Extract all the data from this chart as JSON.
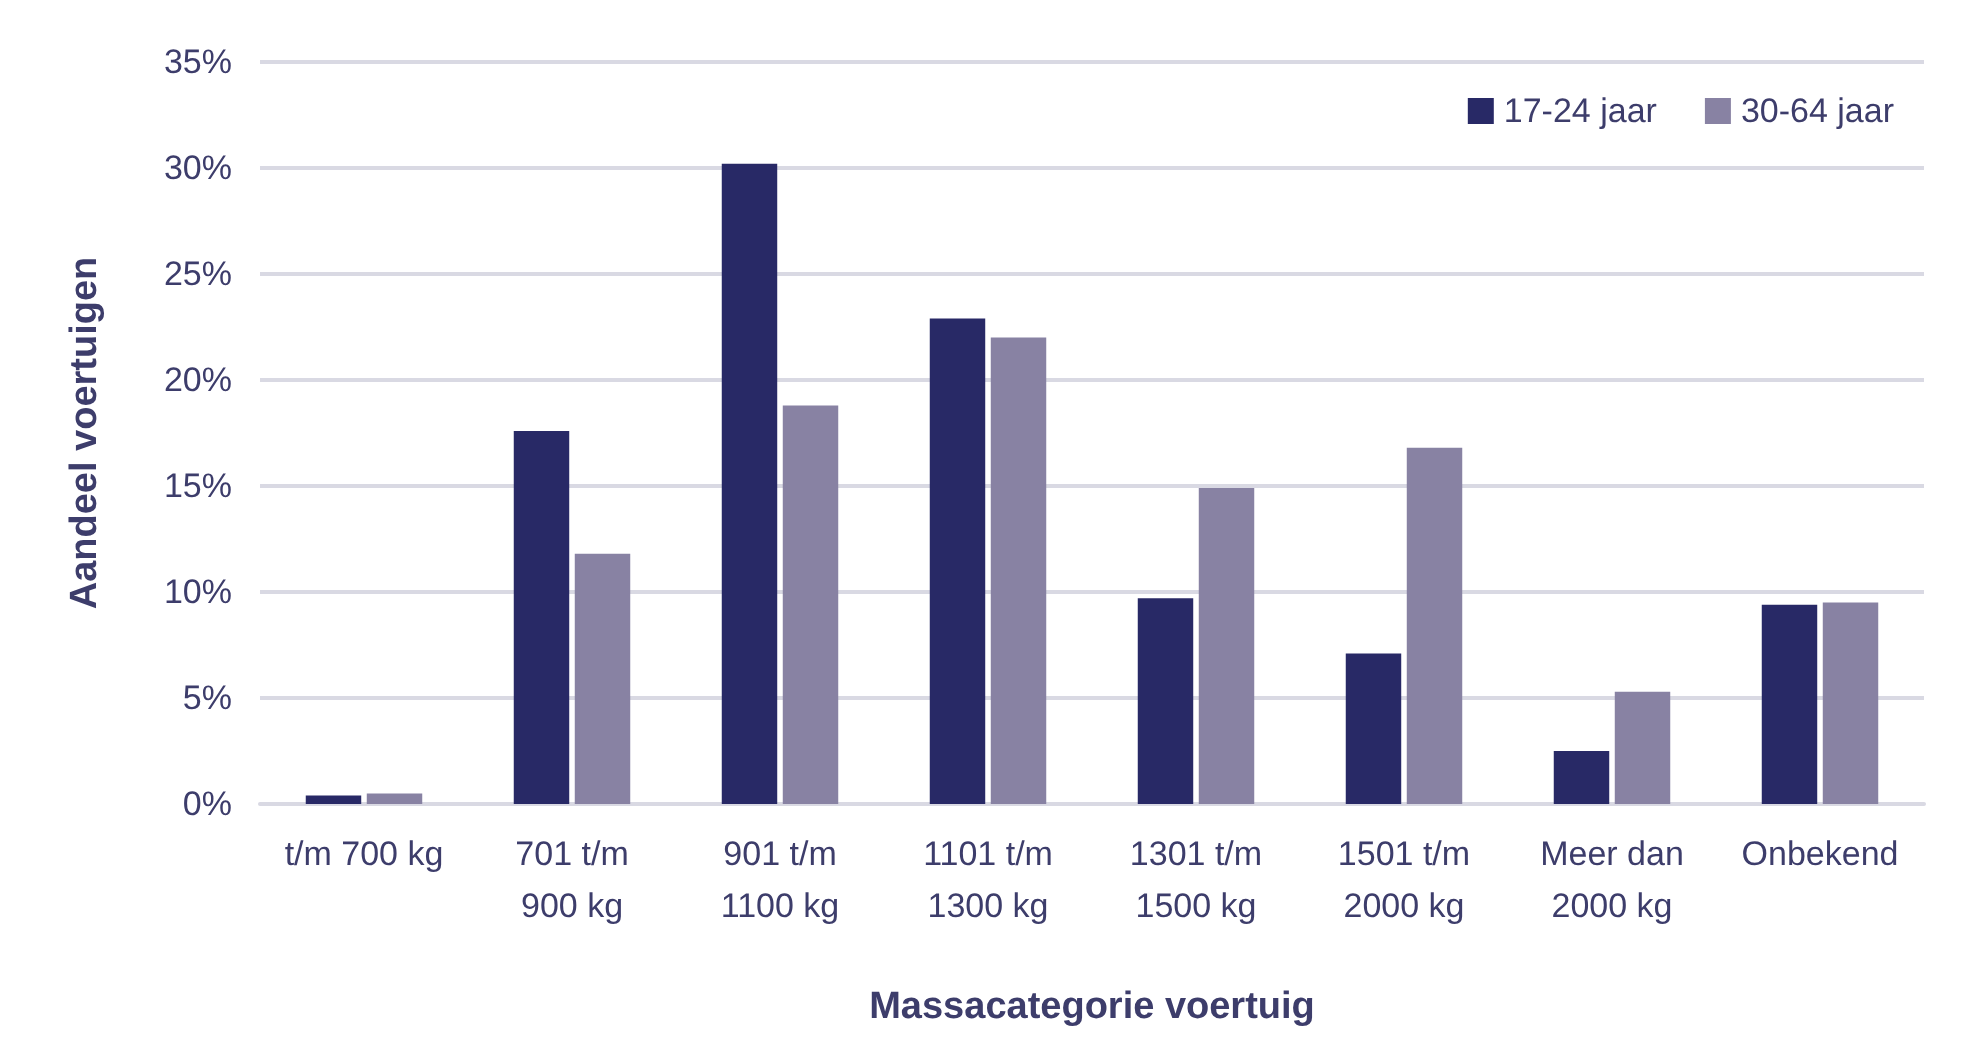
{
  "chart_data": {
    "type": "bar",
    "xlabel": "Massacategorie voertuig",
    "ylabel": "Aandeel voertuigen",
    "categories": [
      "t/m 700 kg",
      "701 t/m\n900 kg",
      "901 t/m\n1100 kg",
      "1101 t/m\n1300 kg",
      "1301 t/m\n1500 kg",
      "1501 t/m\n2000 kg",
      "Meer dan\n2000 kg",
      "Onbekend"
    ],
    "series": [
      {
        "name": "17-24 jaar",
        "color": "#282966",
        "values": [
          0.4,
          17.6,
          30.2,
          22.9,
          9.7,
          7.1,
          2.5,
          9.4
        ]
      },
      {
        "name": "30-64 jaar",
        "color": "#8882a3",
        "values": [
          0.5,
          11.8,
          18.8,
          22.0,
          14.9,
          16.8,
          5.3,
          9.5
        ]
      }
    ],
    "ylim": [
      0,
      35
    ],
    "yticks": [
      {
        "value": 0,
        "label": "0%"
      },
      {
        "value": 5,
        "label": "5%"
      },
      {
        "value": 10,
        "label": "10%"
      },
      {
        "value": 15,
        "label": "15%"
      },
      {
        "value": 20,
        "label": "20%"
      },
      {
        "value": 25,
        "label": "25%"
      },
      {
        "value": 30,
        "label": "30%"
      },
      {
        "value": 35,
        "label": "35%"
      }
    ],
    "grid": "y",
    "legend": "top right"
  }
}
